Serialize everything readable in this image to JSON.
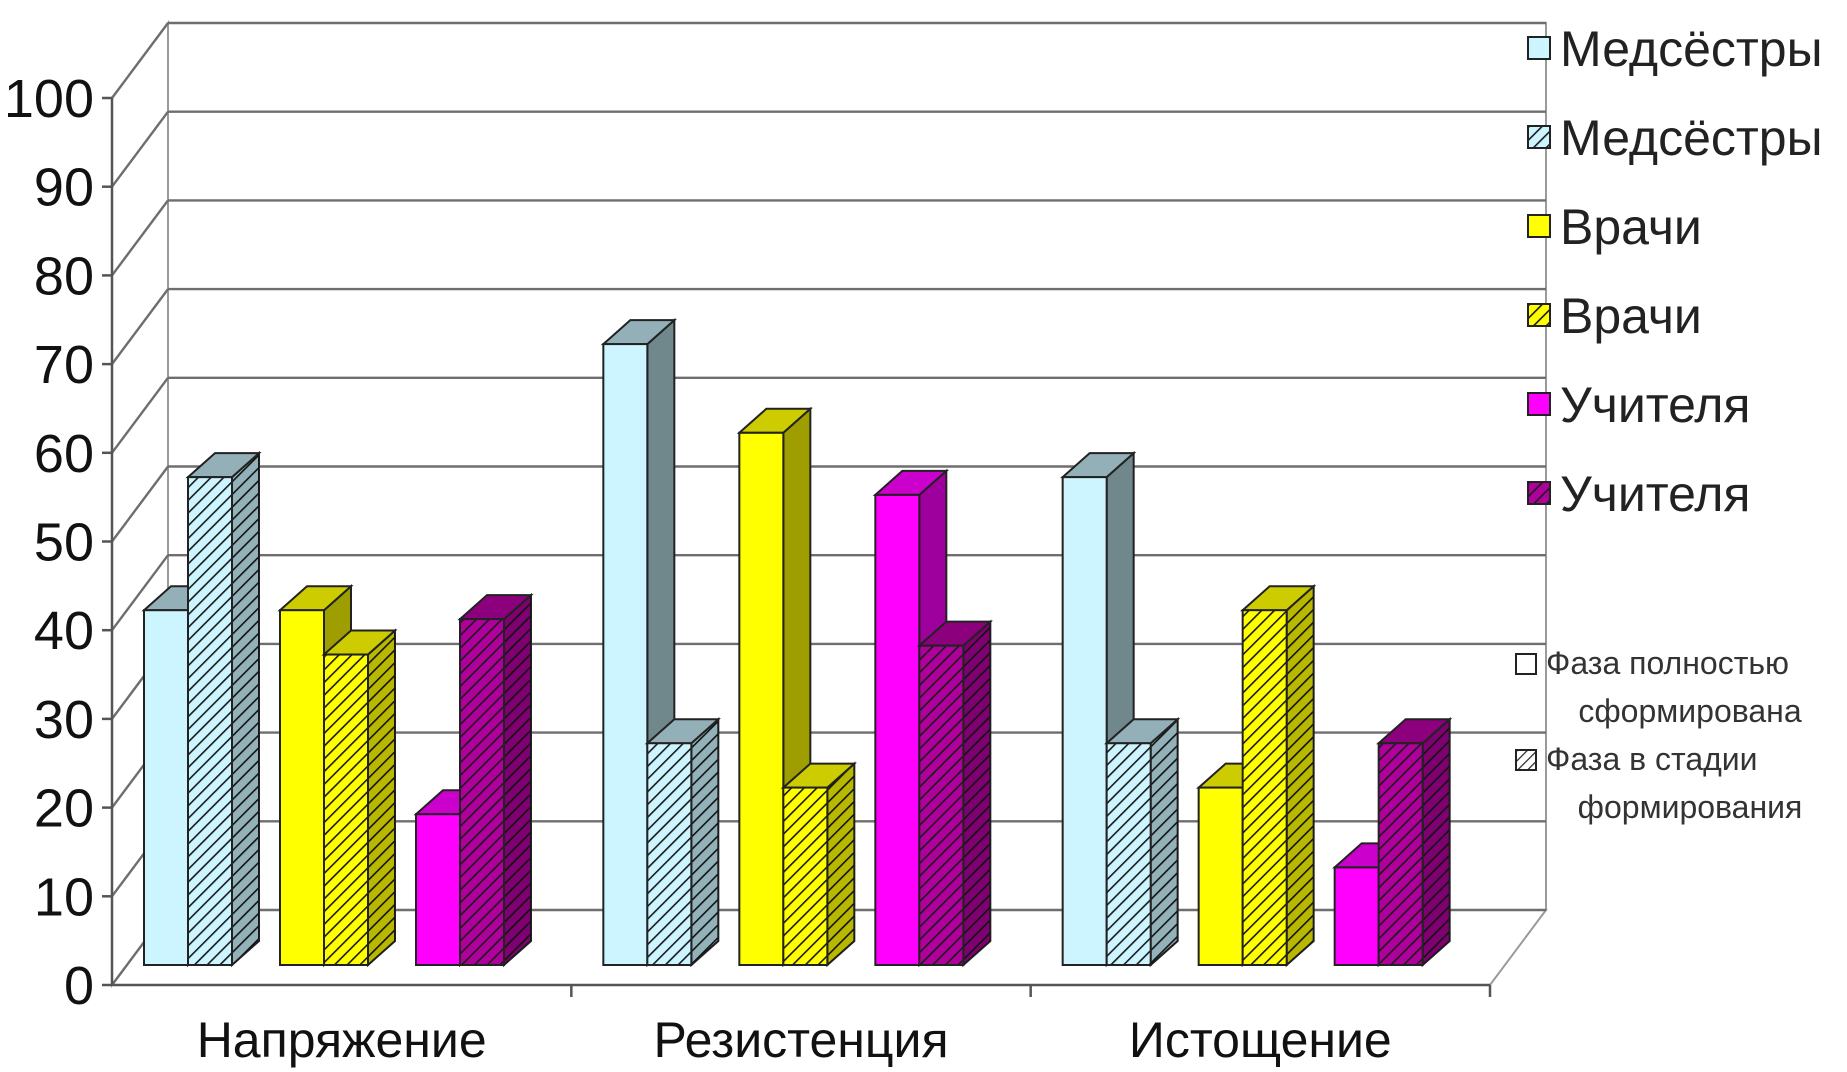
{
  "chart_data": {
    "type": "bar",
    "title": "",
    "xlabel": "",
    "ylabel": "",
    "ylim": [
      0,
      100
    ],
    "yticks": [
      0,
      10,
      20,
      30,
      40,
      50,
      60,
      70,
      80,
      90,
      100
    ],
    "categories": [
      "Напряжение",
      "Резистенция",
      "Истощение"
    ],
    "grid": true,
    "legend_position": "right",
    "three_d": true,
    "series": [
      {
        "name": "Медсёстры",
        "values": [
          40,
          70,
          55
        ],
        "color": "#ccf5ff",
        "hatched": false
      },
      {
        "name": "Медсёстры",
        "values": [
          55,
          25,
          25
        ],
        "color": "#ccf5ff",
        "hatched": true
      },
      {
        "name": "Врачи",
        "values": [
          40,
          60,
          20
        ],
        "color": "#ffff00",
        "hatched": false
      },
      {
        "name": "Врачи",
        "values": [
          35,
          20,
          40
        ],
        "color": "#ffff00",
        "hatched": true
      },
      {
        "name": "Учителя",
        "values": [
          17,
          53,
          11
        ],
        "color": "#ff00ff",
        "hatched": false
      },
      {
        "name": "Учителя",
        "values": [
          39,
          36,
          25
        ],
        "color": "#b0009c",
        "hatched": true
      }
    ],
    "legend_notes": [
      {
        "text_lines": [
          "Фаза полностью",
          "сформирована"
        ],
        "hatched": false
      },
      {
        "text_lines": [
          "Фаза в стадии",
          "формирования"
        ],
        "hatched": true
      }
    ]
  }
}
